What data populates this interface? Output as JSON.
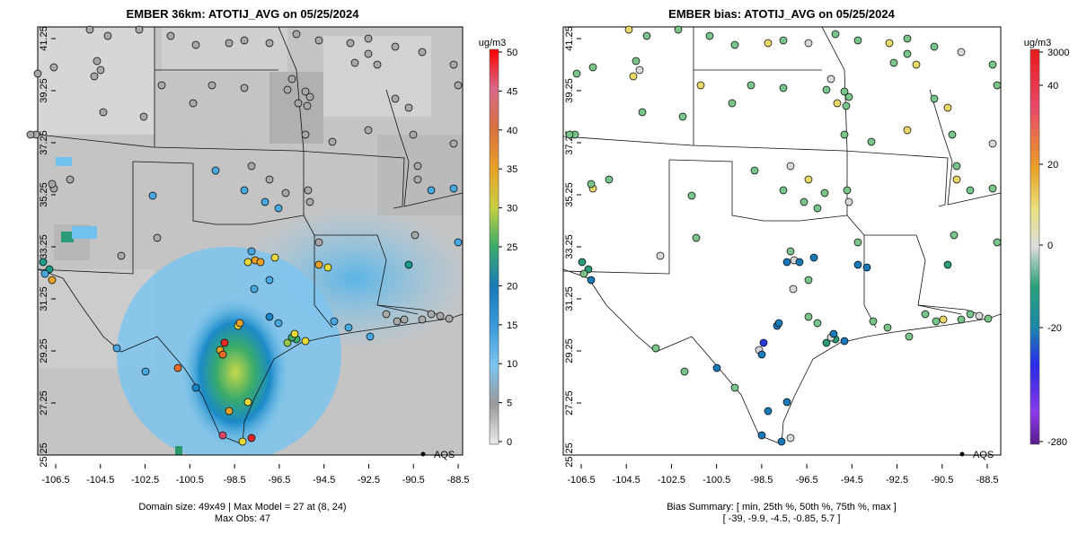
{
  "left_panel": {
    "title": "EMBER 36km: ATOTIJ_AVG on 05/25/2024",
    "colorbar_unit": "ug/m3",
    "colorbar_ticks": [
      "50",
      "45",
      "40",
      "35",
      "30",
      "25",
      "20",
      "15",
      "10",
      "5",
      "0"
    ],
    "footer_line1": "Domain size: 49x49 | Max Model = 27 at (8, 24)",
    "footer_line2": "Max Obs: 47",
    "legend_label": "AQS"
  },
  "right_panel": {
    "title": "EMBER bias: ATOTIJ_AVG on 05/25/2024",
    "colorbar_unit": "ug/m3",
    "colorbar_ticks": [
      "3000",
      "40",
      "20",
      "0",
      "-20",
      "-280"
    ],
    "footer_line1": "Bias Summary: [ min, 25th %, 50th %, 75th %, max ]",
    "footer_line2": "[ -39,   -9.9,   -4.5,   -0.85,   5.7 ]",
    "legend_label": "AQS"
  },
  "axes": {
    "lat_ticks": [
      "41.25",
      "39.25",
      "37.25",
      "35.25",
      "33.25",
      "31.25",
      "29.25",
      "27.25",
      "25.25"
    ],
    "lon_ticks": [
      "-106.5",
      "-104.5",
      "-102.5",
      "-100.5",
      "-98.5",
      "-96.5",
      "-94.5",
      "-92.5",
      "-90.5",
      "-88.5"
    ]
  },
  "colors": {
    "model_scale": [
      "#e0e0e0",
      "#a8a8a8",
      "#6ec2ec",
      "#48a8e0",
      "#1a86c8",
      "#1c9c88",
      "#3aab6a",
      "#96c84a",
      "#e6d83a",
      "#e8a028",
      "#e46c28",
      "#d84a6a",
      "#e82828"
    ],
    "bias_scale": [
      "#6a2a9a",
      "#2a3ad8",
      "#1a7ab8",
      "#2a9a7a",
      "#7ac48a",
      "#d8d8d8",
      "#e8d86a",
      "#e8a028",
      "#e84a3a",
      "#e81a1a"
    ]
  }
}
